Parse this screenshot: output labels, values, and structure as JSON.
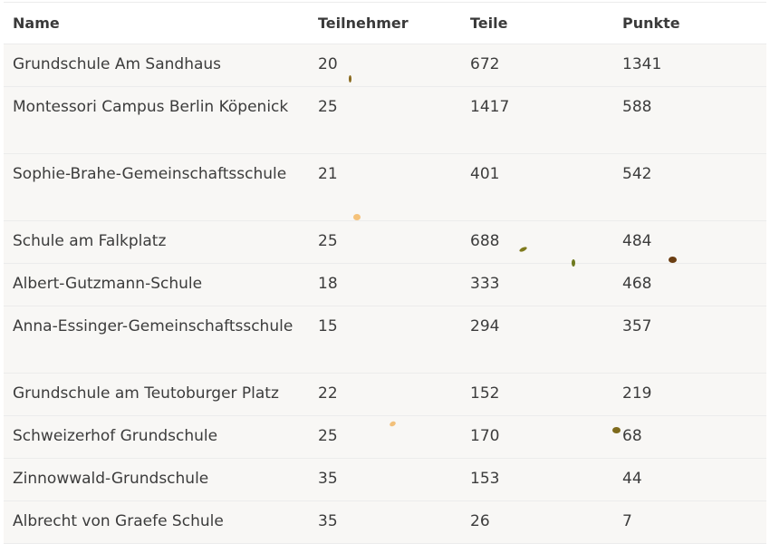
{
  "table": {
    "headers": [
      "Name",
      "Teilnehmer",
      "Teile",
      "Punkte"
    ],
    "rows": [
      {
        "name": "Grundschule Am Sandhaus",
        "teilnehmer": "20",
        "teile": "672",
        "punkte": "1341"
      },
      {
        "name": "Montessori Campus Berlin Köpenick",
        "teilnehmer": "25",
        "teile": "1417",
        "punkte": "588"
      },
      {
        "name": "Sophie-Brahe-Gemeinschaftsschule",
        "teilnehmer": "21",
        "teile": "401",
        "punkte": "542"
      },
      {
        "name": "Schule am Falkplatz",
        "teilnehmer": "25",
        "teile": "688",
        "punkte": "484"
      },
      {
        "name": "Albert-Gutzmann-Schule",
        "teilnehmer": "18",
        "teile": "333",
        "punkte": "468"
      },
      {
        "name": "Anna-Essinger-Gemeinschaftsschule",
        "teilnehmer": "15",
        "teile": "294",
        "punkte": "357"
      },
      {
        "name": "Grundschule am Teutoburger Platz",
        "teilnehmer": "22",
        "teile": "152",
        "punkte": "219"
      },
      {
        "name": "Schweizerhof Grundschule",
        "teilnehmer": "25",
        "teile": "170",
        "punkte": "68"
      },
      {
        "name": "Zinnowwald-Grundschule",
        "teilnehmer": "35",
        "teile": "153",
        "punkte": "44"
      },
      {
        "name": "Albrecht von Graefe Schule",
        "teilnehmer": "35",
        "teile": "26",
        "punkte": "7"
      }
    ]
  },
  "colors": {
    "row_background": "#f8f7f5",
    "header_background": "#ffffff",
    "text": "#3c3c3c",
    "divider": "#ececec"
  }
}
